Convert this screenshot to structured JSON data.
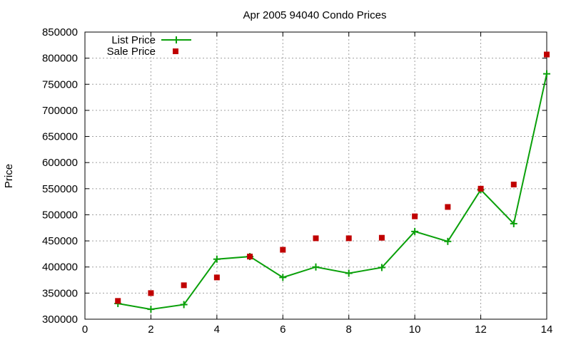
{
  "chart_data": {
    "type": "line",
    "title": "Apr 2005 94040 Condo Prices",
    "xlabel": "",
    "ylabel": "Price",
    "xlim": [
      0,
      14
    ],
    "ylim": [
      300000,
      850000
    ],
    "x_ticks": [
      "0",
      "2",
      "4",
      "6",
      "8",
      "10",
      "12",
      "14"
    ],
    "y_ticks": [
      "300000",
      "350000",
      "400000",
      "450000",
      "500000",
      "550000",
      "600000",
      "650000",
      "700000",
      "750000",
      "800000",
      "850000"
    ],
    "grid": true,
    "legend_position": "top-left",
    "series": [
      {
        "name": "List Price",
        "style": "lines+points",
        "color": "#0aa00a",
        "marker": "plus",
        "x": [
          1,
          2,
          3,
          4,
          5,
          6,
          7,
          8,
          9,
          10,
          11,
          12,
          13,
          14
        ],
        "values": [
          330000,
          319000,
          328000,
          415000,
          420000,
          380000,
          400000,
          388000,
          399000,
          468000,
          449000,
          548000,
          483000,
          770000
        ]
      },
      {
        "name": "Sale Price",
        "style": "points",
        "color": "#c00000",
        "marker": "square",
        "x": [
          1,
          2,
          3,
          4,
          5,
          6,
          7,
          8,
          9,
          10,
          11,
          12,
          13,
          14
        ],
        "values": [
          335000,
          350000,
          365000,
          380000,
          420000,
          433000,
          455000,
          455000,
          456000,
          497000,
          515000,
          550000,
          558000,
          807000
        ]
      }
    ]
  }
}
